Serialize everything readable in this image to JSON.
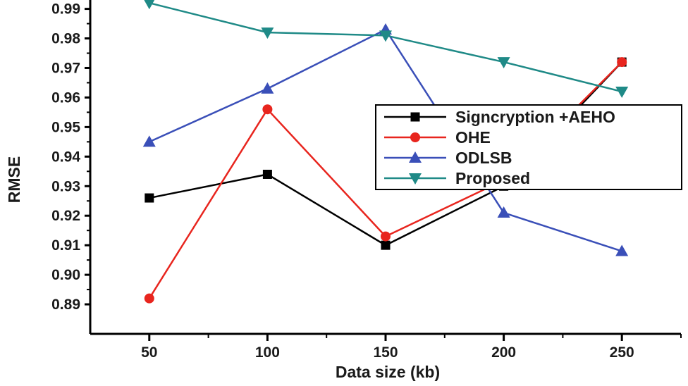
{
  "chart_data": {
    "type": "line",
    "x": [
      50,
      100,
      150,
      200,
      250
    ],
    "xlabel": "Data size (kb)",
    "ylabel": "RMSE",
    "xlim": [
      25,
      275
    ],
    "ylim": [
      0.88,
      0.993
    ],
    "xticks": [
      50,
      100,
      150,
      200,
      250
    ],
    "yticks": [
      0.89,
      0.9,
      0.91,
      0.92,
      0.93,
      0.94,
      0.95,
      0.96,
      0.97,
      0.98,
      0.99
    ],
    "ytick_labels": [
      "0.89",
      "0.90",
      "0.91",
      "0.92",
      "0.93",
      "0.94",
      "0.95",
      "0.96",
      "0.97",
      "0.98",
      "0.99"
    ],
    "grid": false,
    "legend_position": "center-right",
    "series": [
      {
        "name": "Signcryption +AEHO",
        "values": [
          0.926,
          0.934,
          0.91,
          0.93,
          0.972
        ],
        "color": "#000000",
        "marker": "square"
      },
      {
        "name": "OHE",
        "values": [
          0.892,
          0.956,
          0.913,
          0.932,
          0.972
        ],
        "color": "#e8251e",
        "marker": "circle"
      },
      {
        "name": "ODLSB",
        "values": [
          0.945,
          0.963,
          0.983,
          0.921,
          0.908
        ],
        "color": "#3a4fb8",
        "marker": "triangle-up"
      },
      {
        "name": "Proposed",
        "values": [
          0.992,
          0.982,
          0.981,
          0.972,
          0.962
        ],
        "color": "#1f8a87",
        "marker": "triangle-down"
      }
    ]
  }
}
